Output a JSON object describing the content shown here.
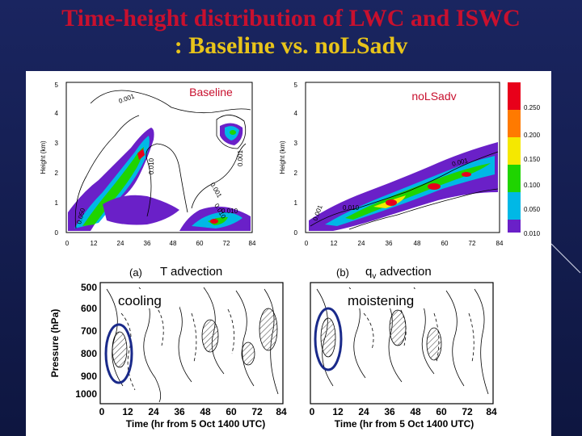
{
  "title": {
    "line1": "Time-height distribution of LWC and ISWC",
    "line2": ": Baseline vs. noLSadv"
  },
  "top_panels": {
    "y_axis_label": "Height (km)",
    "y_ticks": [
      "0",
      "1",
      "2",
      "3",
      "4",
      "5"
    ],
    "x_ticks": [
      "0",
      "12",
      "24",
      "36",
      "48",
      "60",
      "72",
      "84"
    ],
    "baseline": {
      "title": "Baseline",
      "contour_labels": [
        "0.001",
        "0.001",
        "0.010",
        "0.001",
        "0.010",
        "0.050",
        "0.010"
      ]
    },
    "nolsadv": {
      "title": "noLSadv",
      "contour_labels": [
        "0.001",
        "0.010",
        "0.001"
      ]
    },
    "colorbar": {
      "ticks": [
        "0.250",
        "0.200",
        "0.150",
        "0.100",
        "0.050",
        "0.010"
      ],
      "colors": [
        "#e8001a",
        "#ff7a00",
        "#f5e800",
        "#1fd400",
        "#00b8e6",
        "#6a20c8"
      ]
    }
  },
  "bottom_panels": {
    "y_axis_label": "Pressure (hPa)",
    "y_ticks": [
      "500",
      "600",
      "700",
      "800",
      "900",
      "1000"
    ],
    "x_ticks": [
      "0",
      "12",
      "24",
      "36",
      "48",
      "60",
      "72",
      "84"
    ],
    "x_axis_label": "Time (hr from 5 Oct 1400 UTC)",
    "panel_a": {
      "letter": "(a)",
      "title": "T advection",
      "annotation": "cooling"
    },
    "panel_b": {
      "letter": "(b)",
      "title_var": "q",
      "title_sub": "v",
      "title_rest": " advection",
      "annotation": "moistening"
    }
  },
  "colors": {
    "title_red": "#c8102e",
    "title_yellow": "#e8c41a",
    "highlight_ellipse": "#1a2a8a"
  }
}
